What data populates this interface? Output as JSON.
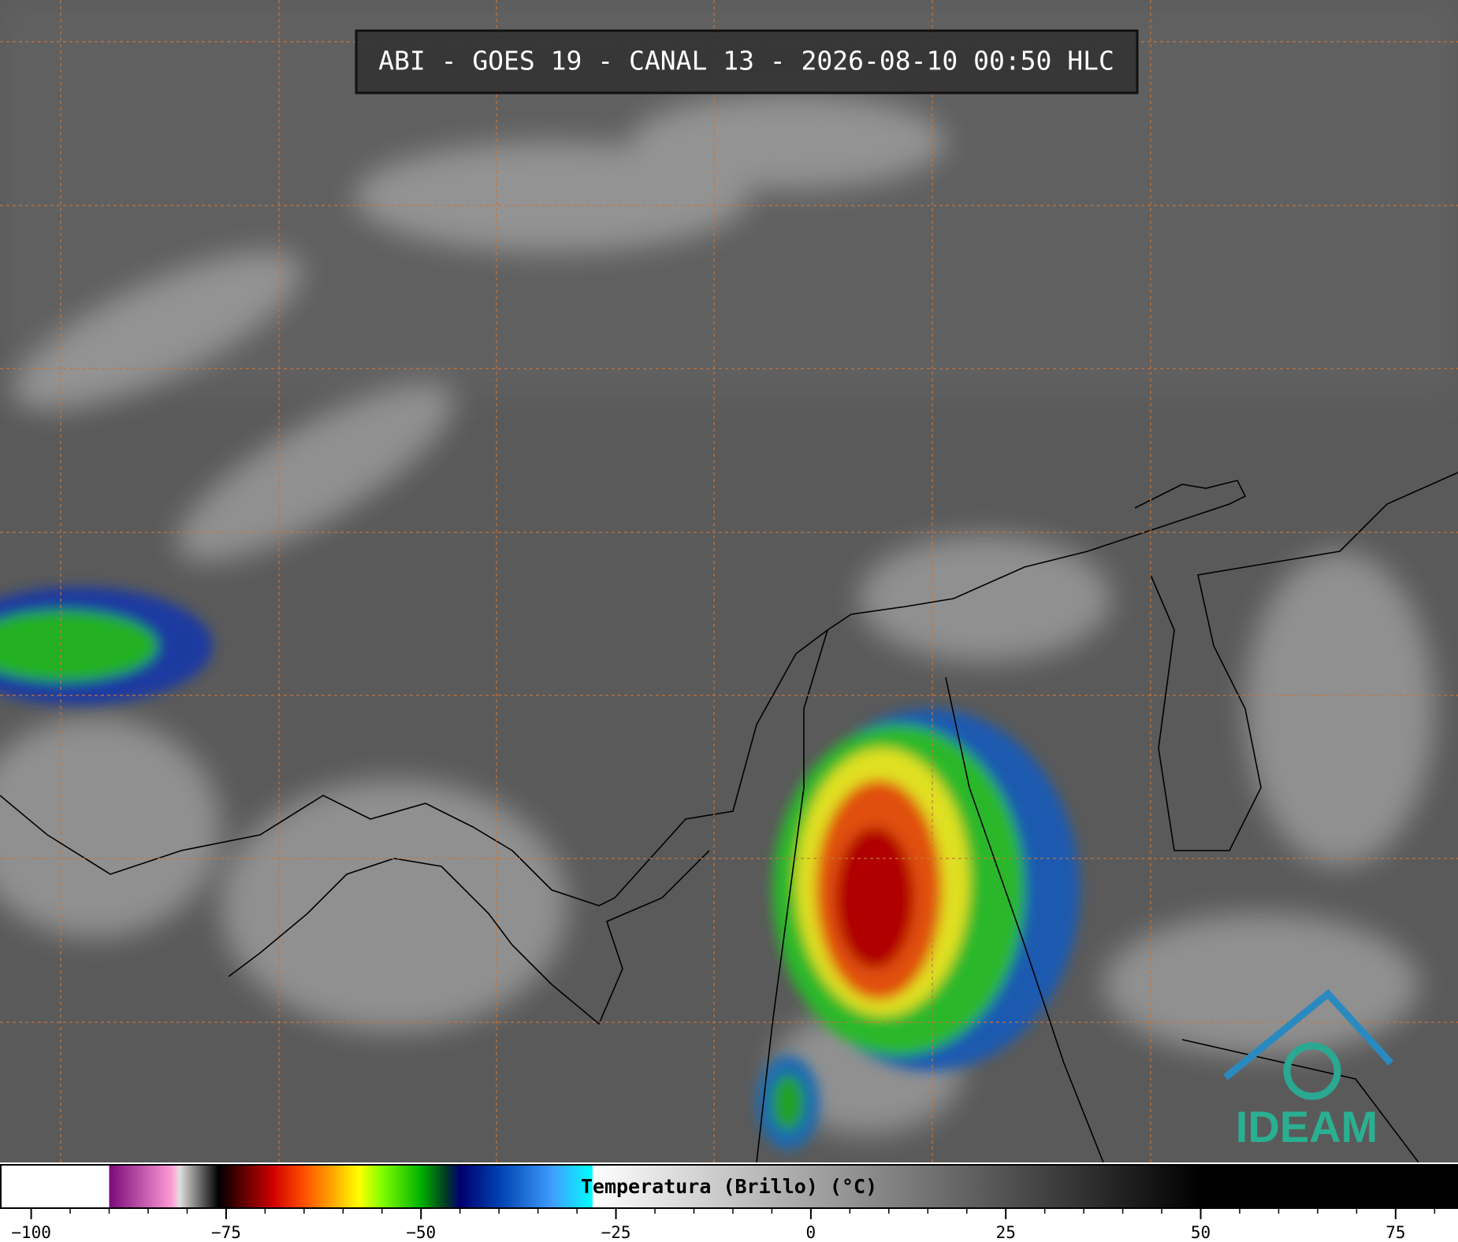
{
  "title": "ABI - GOES 19 - CANAL 13 - 2026-08-10 00:50 HLC",
  "logo": "IDEAM",
  "colorbar": {
    "label": "Temperatura (Brillo) (°C)",
    "range": [
      -104,
      83
    ],
    "ticks": [
      {
        "value": -100,
        "label": "−100"
      },
      {
        "value": -75,
        "label": "−75"
      },
      {
        "value": -50,
        "label": "−50"
      },
      {
        "value": -25,
        "label": "−25"
      },
      0,
      25,
      50,
      75
    ],
    "minor_step": 5,
    "stops": [
      [
        -104,
        "#ffffff"
      ],
      [
        -90,
        "#ffffff"
      ],
      [
        -90,
        "#7a0a7a"
      ],
      [
        -82,
        "#ff9ad5"
      ],
      [
        -81,
        "#e0e0e0"
      ],
      [
        -76,
        "#000000"
      ],
      [
        -74,
        "#3a0000"
      ],
      [
        -69,
        "#d00000"
      ],
      [
        -65,
        "#ff5000"
      ],
      [
        -61,
        "#ffb000"
      ],
      [
        -58,
        "#ffff00"
      ],
      [
        -55,
        "#80ff00"
      ],
      [
        -50,
        "#00b000"
      ],
      [
        -47,
        "#004020"
      ],
      [
        -45,
        "#000070"
      ],
      [
        -40,
        "#0040b0"
      ],
      [
        -33,
        "#40a0ff"
      ],
      [
        -28,
        "#00ffff"
      ],
      [
        -28,
        "#ffffff"
      ],
      [
        50,
        "#000000"
      ],
      [
        83,
        "#000000"
      ]
    ]
  }
}
